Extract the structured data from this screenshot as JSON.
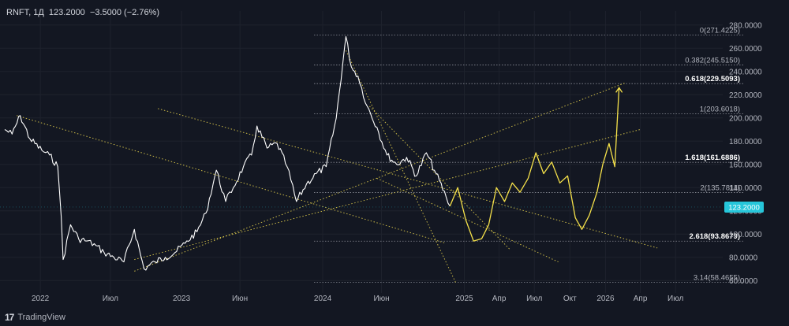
{
  "header": {
    "symbol": "RNFT, 1Д",
    "price": "123.2000",
    "change": "−3.5000 (−2.76%)"
  },
  "brand": {
    "name": "TradingView",
    "icon": "tradingview-logo-icon"
  },
  "colors": {
    "background": "#131722",
    "history_line": "#ffffff",
    "forecast_line": "#f5e14a",
    "trend_lines": "#e8d44d",
    "fib_lines": "#b2b5be",
    "last_price_badge": "#26c6da",
    "axis_text": "#b2b5be"
  },
  "chart_data": {
    "type": "line",
    "x_tick_labels": [
      "2022",
      "Июл",
      "2023",
      "Июн",
      "2024",
      "Июн",
      "2025",
      "Апр",
      "Июл",
      "Окт",
      "2026",
      "Апр",
      "Июл"
    ],
    "y_tick_labels": [
      "60.0000",
      "80.0000",
      "100.0000",
      "120.0000",
      "140.0000",
      "160.0000",
      "180.0000",
      "200.0000",
      "220.0000",
      "240.0000",
      "260.0000",
      "280.0000"
    ],
    "ylim": [
      52,
      292
    ],
    "last_price": 123.2,
    "last_price_label": "123.2000",
    "history": {
      "dates": [
        "2021-10-01",
        "2021-10-20",
        "2021-11-10",
        "2021-12-05",
        "2022-01-05",
        "2022-01-25",
        "2022-02-15",
        "2022-02-24",
        "2022-03-01",
        "2022-03-20",
        "2022-04-10",
        "2022-05-01",
        "2022-05-25",
        "2022-06-15",
        "2022-07-10",
        "2022-08-05",
        "2022-09-01",
        "2022-09-26",
        "2022-10-25",
        "2022-11-20",
        "2022-12-15",
        "2023-01-10",
        "2023-02-10",
        "2023-03-05",
        "2023-04-01",
        "2023-04-25",
        "2023-05-15",
        "2023-06-10",
        "2023-07-01",
        "2023-07-15",
        "2023-08-10",
        "2023-09-05",
        "2023-10-01",
        "2023-10-25",
        "2023-11-20",
        "2023-12-15",
        "2024-01-10",
        "2024-02-05",
        "2024-03-01",
        "2024-03-15",
        "2024-04-01",
        "2024-04-25",
        "2024-05-20",
        "2024-06-15",
        "2024-07-10",
        "2024-08-05",
        "2024-08-30",
        "2024-09-25",
        "2024-10-20",
        "2024-11-15",
        "2024-11-25"
      ],
      "values": [
        190,
        186,
        202,
        182,
        172,
        168,
        158,
        115,
        78,
        108,
        96,
        94,
        90,
        84,
        80,
        76,
        104,
        70,
        76,
        80,
        84,
        92,
        102,
        118,
        155,
        128,
        140,
        158,
        168,
        193,
        174,
        178,
        158,
        128,
        143,
        152,
        158,
        200,
        270,
        244,
        236,
        210,
        192,
        168,
        160,
        166,
        150,
        170,
        152,
        132,
        124
      ]
    },
    "forecast": {
      "dates": [
        "2024-11-25",
        "2024-12-15",
        "2025-01-05",
        "2025-01-25",
        "2025-02-15",
        "2025-03-05",
        "2025-03-25",
        "2025-04-15",
        "2025-05-05",
        "2025-05-25",
        "2025-06-15",
        "2025-07-05",
        "2025-07-25",
        "2025-08-15",
        "2025-09-05",
        "2025-09-25",
        "2025-10-15",
        "2025-11-01",
        "2025-11-20",
        "2025-12-10",
        "2025-12-25",
        "2026-01-10",
        "2026-01-25",
        "2026-02-05"
      ],
      "values": [
        124,
        140,
        112,
        94,
        96,
        108,
        140,
        128,
        144,
        136,
        148,
        170,
        152,
        162,
        144,
        150,
        114,
        104,
        116,
        136,
        160,
        178,
        158,
        226
      ]
    },
    "trend_lines": [
      {
        "x1": "2021-11-01",
        "y1": 202,
        "x2": "2024-11-15",
        "y2": 92
      },
      {
        "x1": "2022-11-01",
        "y1": 208,
        "x2": "2026-05-15",
        "y2": 88
      },
      {
        "x1": "2024-03-01",
        "y1": 258,
        "x2": "2024-12-10",
        "y2": 58
      },
      {
        "x1": "2024-05-01",
        "y1": 210,
        "x2": "2025-05-01",
        "y2": 86
      },
      {
        "x1": "2024-05-20",
        "y1": 148,
        "x2": "2025-09-01",
        "y2": 76
      },
      {
        "x1": "2022-09-01",
        "y1": 78,
        "x2": "2026-04-01",
        "y2": 190
      },
      {
        "x1": "2022-09-01",
        "y1": 68,
        "x2": "2026-02-20",
        "y2": 230
      }
    ],
    "fib_levels": [
      {
        "label": "0(271.4225)",
        "value": 271.4225,
        "highlight": false
      },
      {
        "label": "0.382(245.5150)",
        "value": 245.515,
        "highlight": false
      },
      {
        "label": "0.618(229.5093)",
        "value": 229.5093,
        "highlight": true
      },
      {
        "label": "1(203.6018)",
        "value": 203.6018,
        "highlight": false
      },
      {
        "label": "1.618(161.6886)",
        "value": 161.6886,
        "highlight": true
      },
      {
        "label": "2(135.7811)",
        "value": 135.7811,
        "highlight": false
      },
      {
        "label": "2.618(93.8679)",
        "value": 93.8679,
        "highlight": true
      },
      {
        "label": "3.14(58.4655)",
        "value": 58.4655,
        "highlight": false
      }
    ],
    "grid": true
  }
}
